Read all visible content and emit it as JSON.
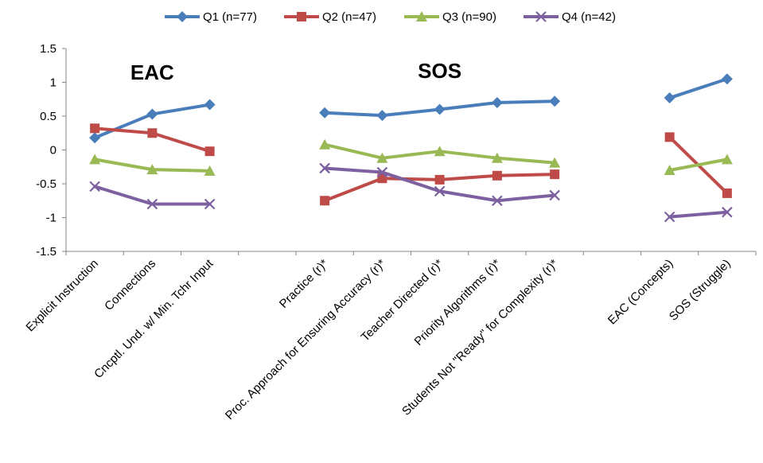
{
  "chart_data": {
    "type": "line",
    "categories": [
      "Explicit Instruction",
      "Connections",
      "Cncptl. Und. w/ Min. Tchr Input",
      "",
      "Practice (r)*",
      "Proc. Approach for Ensuring Accuracy (r)*",
      "Teacher Directed (r)*",
      "Priority Algorithms (r)*",
      "Students Not \"Ready\" for Complexity (r)*",
      "",
      "EAC (Concepts)",
      "SOS (Struggle)"
    ],
    "segments": [
      [
        0,
        2
      ],
      [
        4,
        8
      ],
      [
        10,
        11
      ]
    ],
    "group_labels": [
      {
        "text": "EAC",
        "category_index": 1,
        "y": 1.15
      },
      {
        "text": "SOS",
        "category_index": 6,
        "y": 1.17
      }
    ],
    "series": [
      {
        "name": "Q1 (n=77)",
        "color": "#4a7ebb",
        "marker": "diamond",
        "values": [
          0.18,
          0.53,
          0.67,
          null,
          0.55,
          0.51,
          0.6,
          0.7,
          0.72,
          null,
          0.77,
          1.05
        ]
      },
      {
        "name": "Q2 (n=47)",
        "color": "#be4b48",
        "marker": "square",
        "values": [
          0.32,
          0.25,
          -0.02,
          null,
          -0.75,
          -0.42,
          -0.44,
          -0.38,
          -0.36,
          null,
          0.19,
          -0.64
        ]
      },
      {
        "name": "Q3 (n=90)",
        "color": "#98b954",
        "marker": "triangle",
        "values": [
          -0.14,
          -0.29,
          -0.31,
          null,
          0.08,
          -0.12,
          -0.02,
          -0.12,
          -0.19,
          null,
          -0.3,
          -0.14
        ]
      },
      {
        "name": "Q4 (n=42)",
        "color": "#7d60a0",
        "marker": "x",
        "values": [
          -0.54,
          -0.8,
          -0.8,
          null,
          -0.27,
          -0.33,
          -0.61,
          -0.75,
          -0.67,
          null,
          -0.99,
          -0.92
        ]
      }
    ],
    "yticks": [
      "1.5",
      "1",
      "0.5",
      "0",
      "-0.5",
      "-1",
      "-1.5"
    ],
    "ylim": [
      -1.5,
      1.5
    ],
    "grid": false,
    "legend_position": "top"
  }
}
